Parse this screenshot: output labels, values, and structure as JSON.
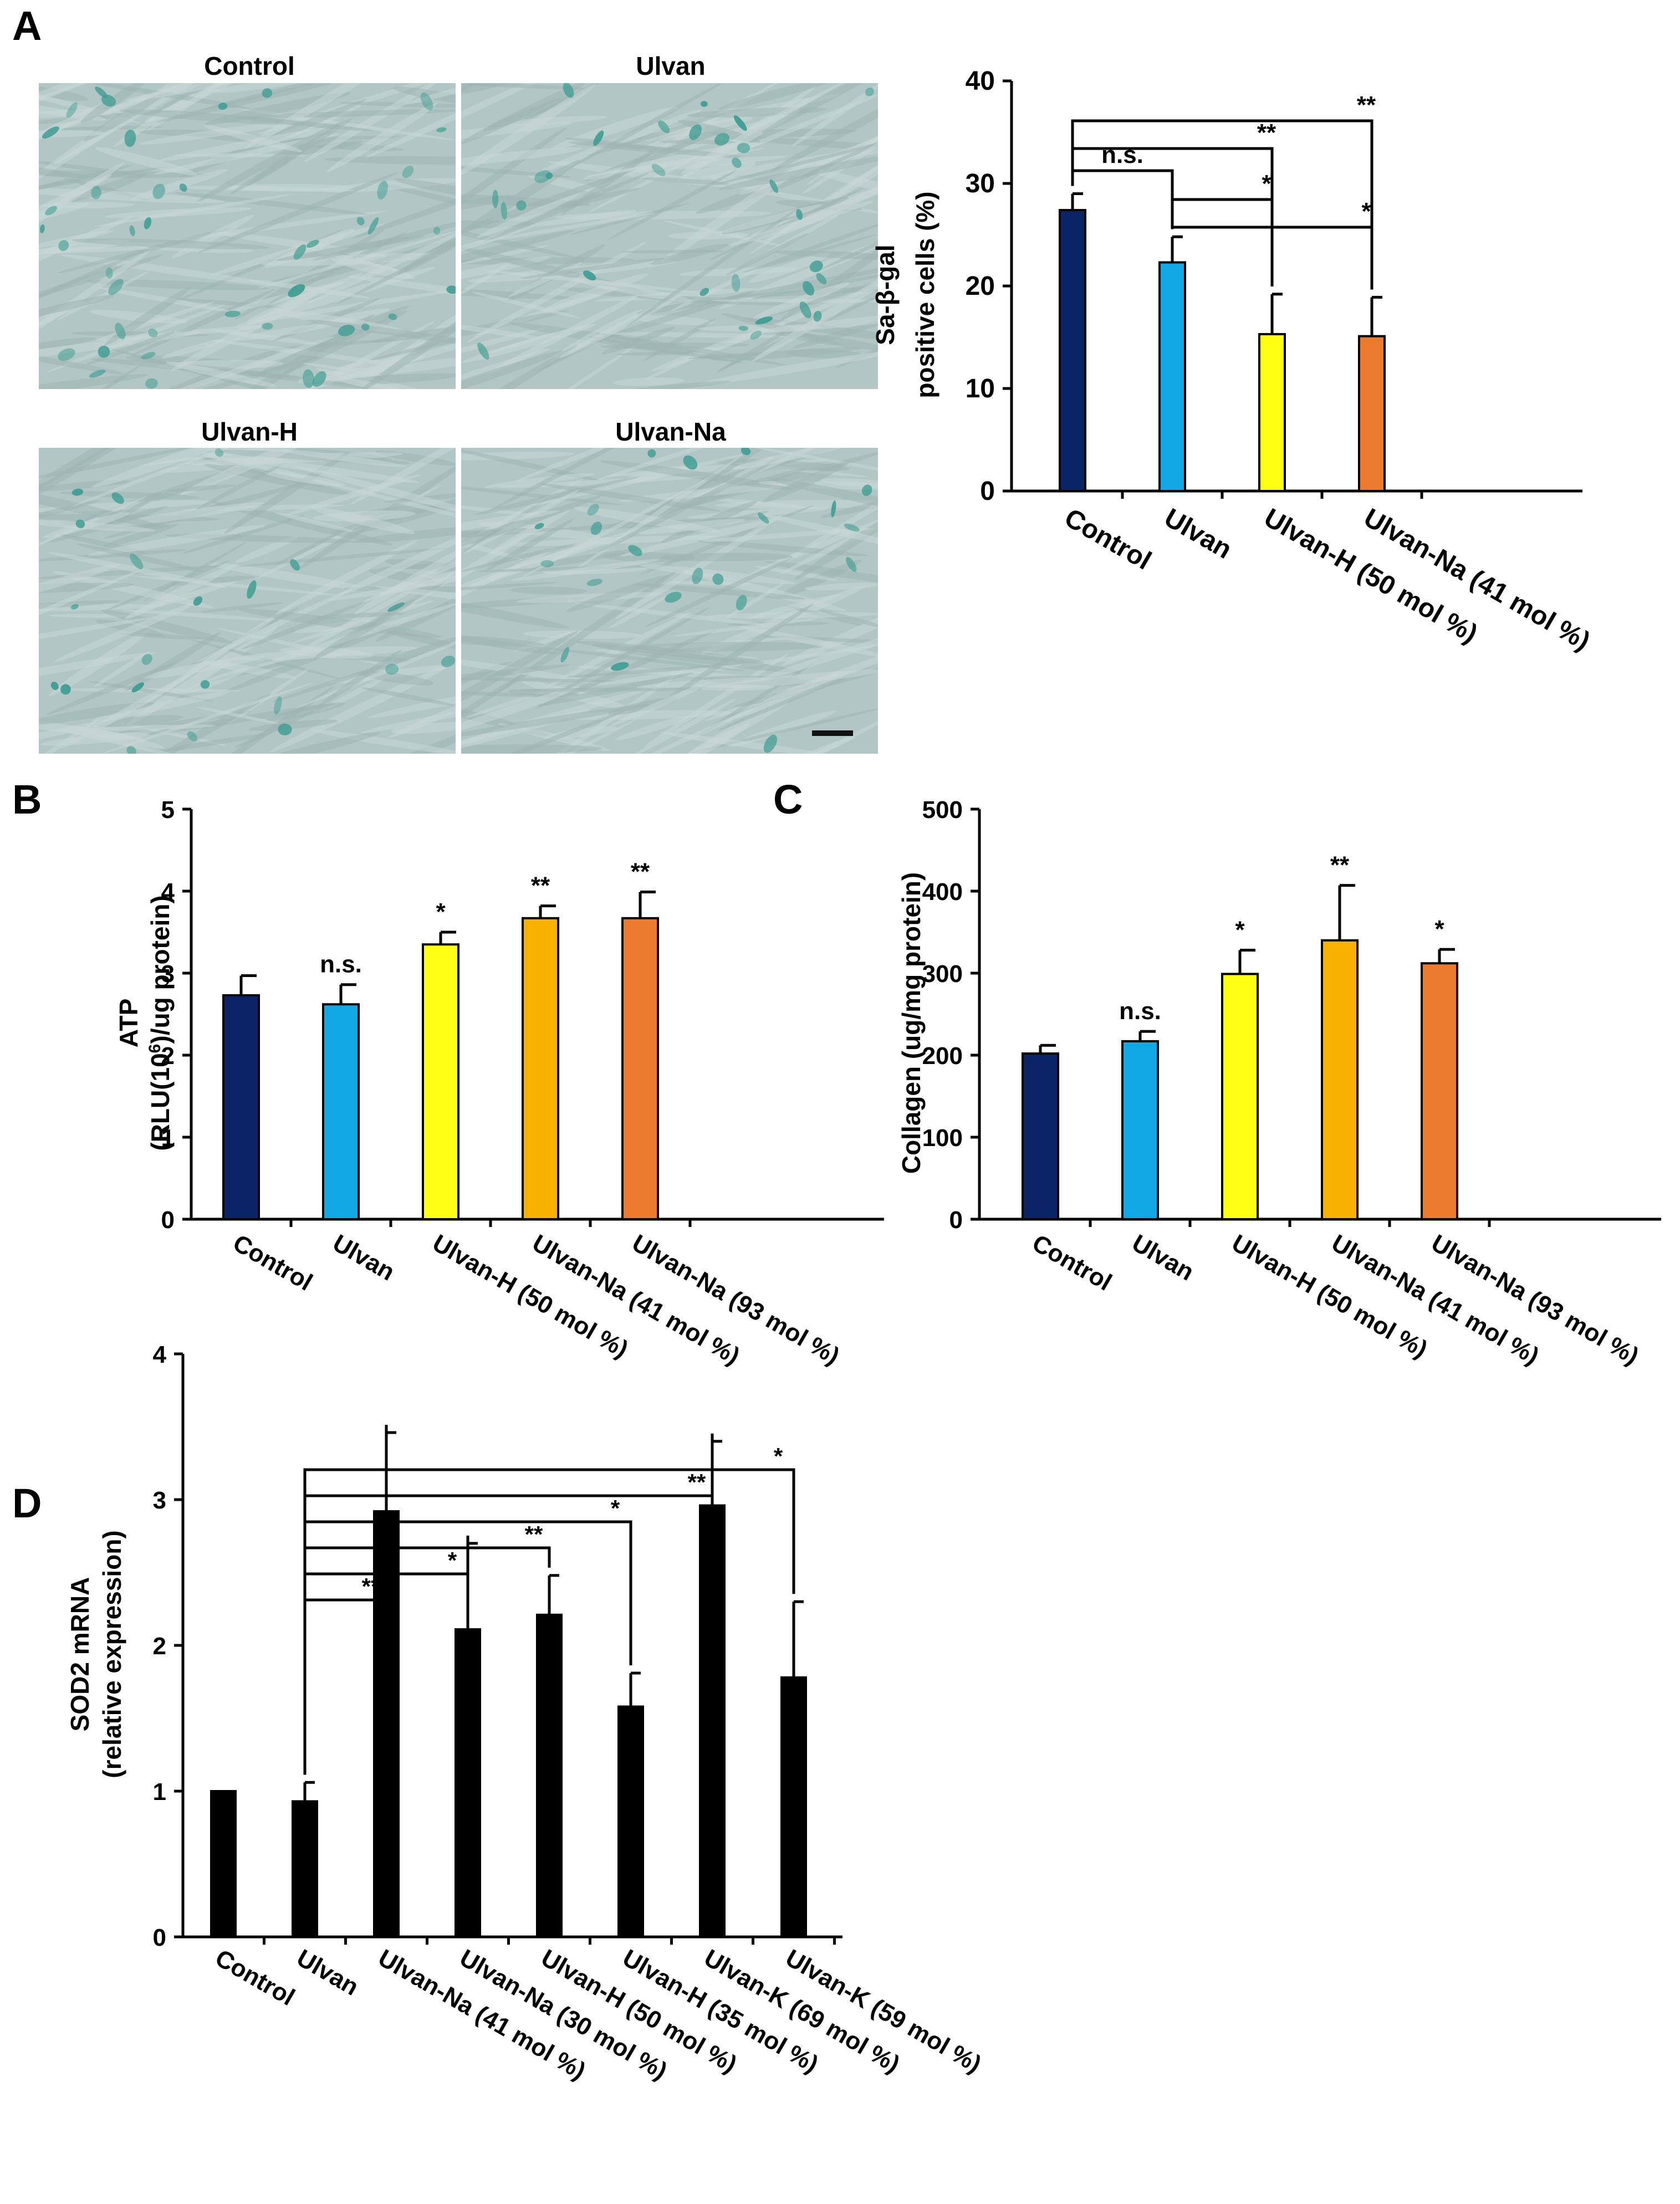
{
  "panels": {
    "a": {
      "letter": "A"
    },
    "b": {
      "letter": "B"
    },
    "c": {
      "letter": "C"
    },
    "d": {
      "letter": "D"
    }
  },
  "micrographs": [
    {
      "title": "Control",
      "stain_level": 0.7
    },
    {
      "title": "Ulvan",
      "stain_level": 0.5
    },
    {
      "title": "Ulvan-H",
      "stain_level": 0.35
    },
    {
      "title": "Ulvan-Na",
      "stain_level": 0.35
    }
  ],
  "colors": {
    "background": "#b2c7c5",
    "stain": "#3e9c93",
    "navy": "#0b2466",
    "light_blue": "#12a8e6",
    "yellow": "#ffff14",
    "amber": "#f7b200",
    "orange": "#ec7b2e",
    "black": "#000000"
  },
  "chart_data": [
    {
      "id": "A",
      "type": "bar",
      "categories": [
        "Control",
        "Ulvan",
        "Ulvan-H (50 mol %)",
        "Ulvan-Na (41 mol %)"
      ],
      "values": [
        27.4,
        22.3,
        15.3,
        15.1
      ],
      "errors": [
        1.6,
        2.5,
        3.9,
        3.8
      ],
      "colors": [
        "#0b2466",
        "#12a8e6",
        "#ffff14",
        "#ec7b2e"
      ],
      "ylabel": [
        "Sa-β-gal",
        "positive cells (%)"
      ],
      "ylim": [
        0,
        40
      ],
      "yticks": [
        0,
        10,
        20,
        30,
        40
      ],
      "significance": [
        {
          "from": 0,
          "to": 1,
          "label": "n.s."
        },
        {
          "from": 0,
          "to": 2,
          "label": "**"
        },
        {
          "from": 0,
          "to": 3,
          "label": "**"
        },
        {
          "from": 1,
          "to": 2,
          "label": "*"
        },
        {
          "from": 1,
          "to": 3,
          "label": "*"
        }
      ]
    },
    {
      "id": "B",
      "type": "bar",
      "categories": [
        "Control",
        "Ulvan",
        "Ulvan-H (50 mol %)",
        "Ulvan-Na (41 mol %)",
        "Ulvan-Na (93 mol %)"
      ],
      "values": [
        2.73,
        2.62,
        3.35,
        3.67,
        3.67
      ],
      "errors": [
        0.24,
        0.24,
        0.15,
        0.15,
        0.32
      ],
      "colors": [
        "#0b2466",
        "#12a8e6",
        "#ffff14",
        "#f7b200",
        "#ec7b2e"
      ],
      "ylabel": [
        "ATP",
        "(RLU(10",
        "6",
        ")/ug protein)"
      ],
      "ylim": [
        0,
        5
      ],
      "yticks": [
        0,
        1,
        2,
        3,
        4,
        5
      ],
      "bar_labels": [
        "",
        "n.s.",
        "*",
        "**",
        "**"
      ]
    },
    {
      "id": "C",
      "type": "bar",
      "categories": [
        "Control",
        "Ulvan",
        "Ulvan-H (50 mol %)",
        "Ulvan-Na (41 mol %)",
        "Ulvan-Na (93 mol %)"
      ],
      "values": [
        202,
        217,
        299,
        340,
        312
      ],
      "errors": [
        10,
        12,
        29,
        67,
        17
      ],
      "colors": [
        "#0b2466",
        "#12a8e6",
        "#ffff14",
        "#f7b200",
        "#ec7b2e"
      ],
      "ylabel": [
        "Collagen (ug/mg protein)"
      ],
      "ylim": [
        0,
        500
      ],
      "yticks": [
        0,
        100,
        200,
        300,
        400,
        500
      ],
      "bar_labels": [
        "",
        "n.s.",
        "*",
        "**",
        "*"
      ]
    },
    {
      "id": "D",
      "type": "bar",
      "categories": [
        "Control",
        "Ulvan",
        "Ulvan-Na (41 mol %)",
        "Ulvan-Na (30 mol %)",
        "Ulvan-H (50 mol %)",
        "Ulvan-H (35 mol %)",
        "Ulvan-K (69 mol %)",
        "Ulvan-K  (59 mol %)"
      ],
      "values": [
        1.0,
        0.93,
        2.92,
        2.11,
        2.21,
        1.58,
        2.96,
        1.78
      ],
      "errors": [
        0.0,
        0.13,
        0.54,
        0.59,
        0.27,
        0.23,
        0.44,
        0.52
      ],
      "colors": [
        "#000000",
        "#000000",
        "#000000",
        "#000000",
        "#000000",
        "#000000",
        "#000000",
        "#000000"
      ],
      "ylabel": [
        "SOD2 mRNA",
        "(relative expression)"
      ],
      "ylim": [
        0,
        4
      ],
      "yticks": [
        0,
        1,
        2,
        3,
        4
      ],
      "significance": [
        {
          "from": 1,
          "to": 2,
          "label": "**"
        },
        {
          "from": 1,
          "to": 3,
          "label": "*"
        },
        {
          "from": 1,
          "to": 4,
          "label": "**"
        },
        {
          "from": 1,
          "to": 5,
          "label": "*"
        },
        {
          "from": 1,
          "to": 6,
          "label": "**"
        },
        {
          "from": 1,
          "to": 7,
          "label": "*"
        }
      ]
    }
  ]
}
